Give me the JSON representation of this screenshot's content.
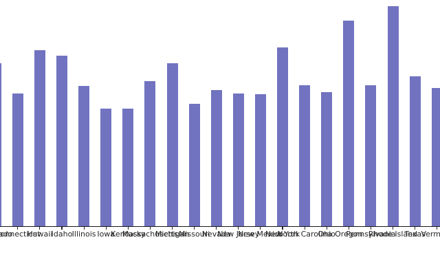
{
  "chart_data": {
    "type": "bar",
    "title": "",
    "xlabel": "",
    "ylabel": "",
    "legend": false,
    "grid": false,
    "bar_color": "#7173c0",
    "axis_color": "#1a1a1a",
    "label_color": "#262626",
    "ylim": [
      0,
      329
    ],
    "categories": [
      "Colorado",
      "Connecticut",
      "Hawaii",
      "Idaho",
      "Illinois",
      "Iowa",
      "Kentucky",
      "Massachusetts",
      "Michigan",
      "Missouri",
      "Nevada",
      "New Jersey",
      "New Mexico",
      "New York",
      "North Carolina",
      "Ohio",
      "Oregon",
      "Pennsylvania",
      "Rhode Island",
      "Texas",
      "Vermont"
    ],
    "values": [
      237,
      193,
      256,
      248,
      204,
      171,
      171,
      211,
      237,
      178,
      198,
      193,
      192,
      260,
      205,
      195,
      299,
      205,
      320,
      218,
      201
    ]
  }
}
